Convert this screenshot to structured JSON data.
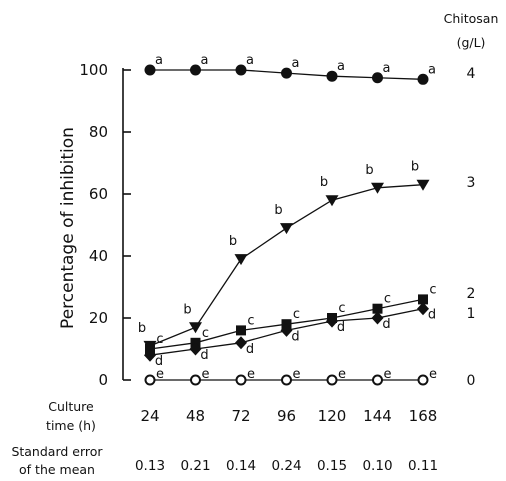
{
  "chart_data": {
    "type": "line",
    "ylabel": "Percentage of inhibition",
    "xlabel_lines": [
      "Culture",
      "time (h)"
    ],
    "legend_title_lines": [
      "Chitosan",
      "(g/L)"
    ],
    "x": [
      24,
      48,
      72,
      96,
      120,
      144,
      168
    ],
    "x_tick_labels": [
      "24",
      "48",
      "72",
      "96",
      "120",
      "144",
      "168"
    ],
    "ylim": [
      0,
      100
    ],
    "y_ticks": [
      0,
      20,
      40,
      60,
      80,
      100
    ],
    "y_tick_labels": [
      "0",
      "20",
      "40",
      "60",
      "80",
      "100"
    ],
    "series": [
      {
        "name": "4",
        "marker": "filled-circle",
        "values": [
          100,
          100,
          100,
          99,
          98,
          97.5,
          97
        ],
        "significance": [
          "a",
          "a",
          "a",
          "a",
          "a",
          "a",
          "a"
        ]
      },
      {
        "name": "3",
        "marker": "filled-triangle-down",
        "values": [
          11,
          17,
          39,
          49,
          58,
          62,
          63
        ],
        "significance": [
          "b",
          "b",
          "b",
          "b",
          "b",
          "b",
          "b"
        ]
      },
      {
        "name": "2",
        "marker": "filled-square",
        "values": [
          10,
          12,
          16,
          18,
          20,
          23,
          26
        ],
        "significance": [
          "c",
          "c",
          "c",
          "c",
          "c",
          "c",
          "c"
        ]
      },
      {
        "name": "1",
        "marker": "filled-diamond",
        "values": [
          8,
          10,
          12,
          16,
          19,
          20,
          23
        ],
        "significance": [
          "d",
          "d",
          "d",
          "d",
          "d",
          "d",
          "d"
        ]
      },
      {
        "name": "0",
        "marker": "open-circle",
        "values": [
          0,
          0,
          0,
          0,
          0,
          0,
          0
        ],
        "significance": [
          "e",
          "e",
          "e",
          "e",
          "e",
          "e",
          "e"
        ]
      }
    ],
    "sem_label_lines": [
      "Standard error",
      "of the mean"
    ],
    "sem_values": [
      "0.13",
      "0.21",
      "0.14",
      "0.24",
      "0.15",
      "0.10",
      "0.11"
    ],
    "line_color": "#111111"
  }
}
